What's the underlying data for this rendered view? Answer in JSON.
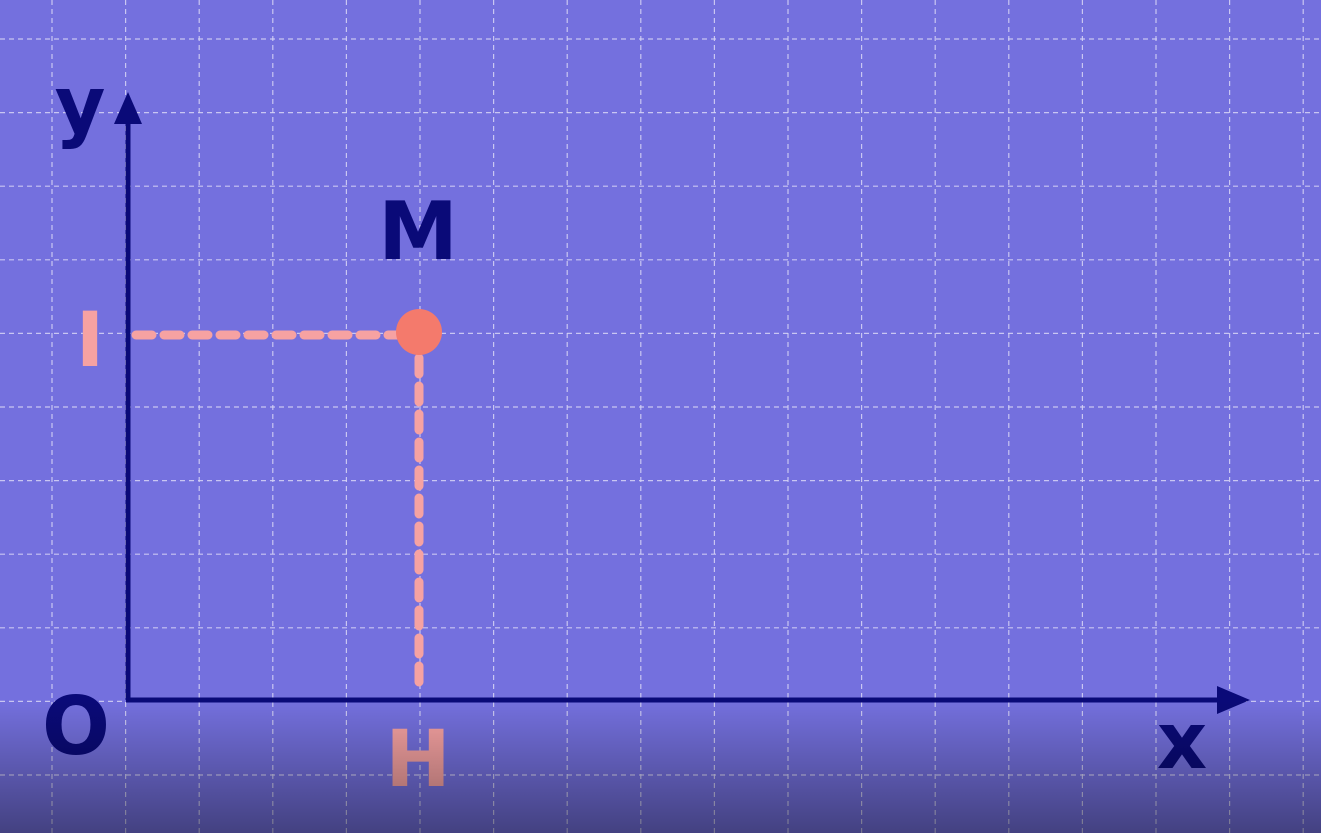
{
  "colors": {
    "background": "#7470de",
    "grid": "#d8d6f6",
    "axis": "#0a0a78",
    "projection": "#f6a2a2",
    "point": "#f47a6c",
    "label_dark": "#0a0a78",
    "label_light": "#f6a2a2"
  },
  "labels": {
    "y_axis": "y",
    "x_axis": "x",
    "origin": "O",
    "point": "M",
    "y_projection": "I",
    "x_projection": "H"
  }
}
